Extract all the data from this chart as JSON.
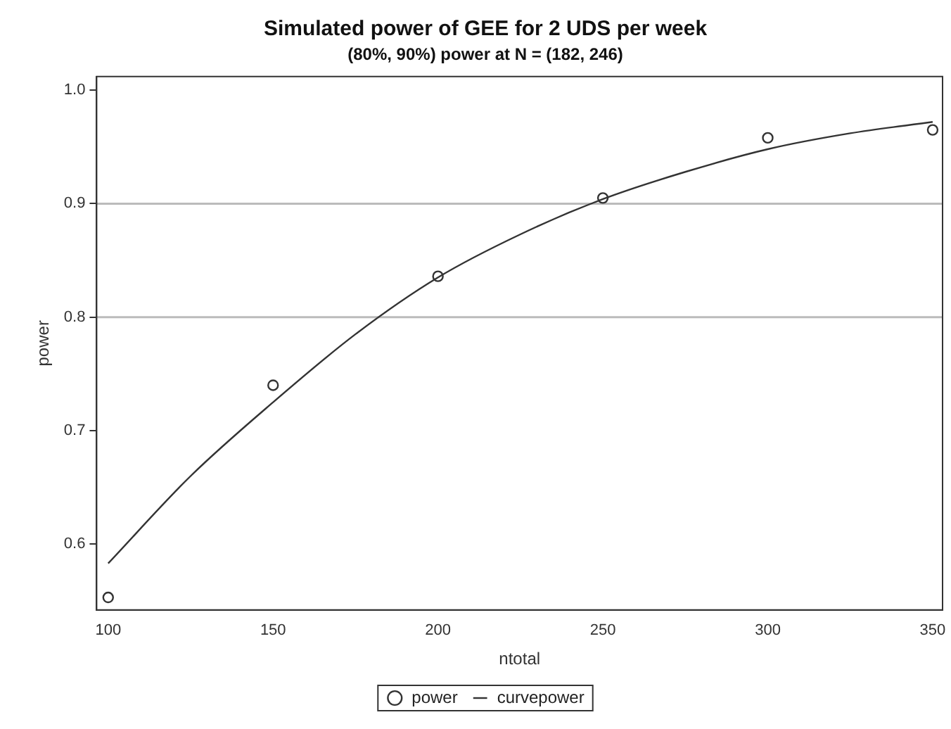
{
  "chart_data": {
    "type": "scatter",
    "title": "Simulated power of GEE for 2 UDS per week",
    "subtitle": "(80%, 90%) power at N = (182, 246)",
    "xlabel": "ntotal",
    "ylabel": "power",
    "xlim": [
      96.5,
      353
    ],
    "xticks": [
      100,
      150,
      200,
      250,
      300,
      350
    ],
    "ylim": [
      0.542,
      1.012
    ],
    "yticks": [
      0.6,
      0.7,
      0.8,
      0.9,
      {
        "value": 1.0,
        "label": "1.0"
      }
    ],
    "series": [
      {
        "name": "power",
        "marker": "circle",
        "color": "#333333",
        "x": [
          100,
          150,
          200,
          250,
          300,
          350
        ],
        "values": [
          0.553,
          0.74,
          0.836,
          0.905,
          0.958,
          0.965
        ]
      },
      {
        "name": "curvepower",
        "type": "line",
        "marker": "none",
        "color": "#333333",
        "x": [
          100,
          125,
          150,
          175,
          200,
          225,
          250,
          275,
          300,
          325,
          350
        ],
        "values": [
          0.583,
          0.66,
          0.725,
          0.785,
          0.835,
          0.873,
          0.904,
          0.928,
          0.948,
          0.962,
          0.972
        ]
      }
    ],
    "ref_lines": [
      {
        "axis": "y",
        "value": 0.8,
        "color": "#bbbbbb"
      },
      {
        "axis": "y",
        "value": 0.9,
        "color": "#bbbbbb"
      }
    ],
    "legend": "bottom",
    "grid": false
  }
}
